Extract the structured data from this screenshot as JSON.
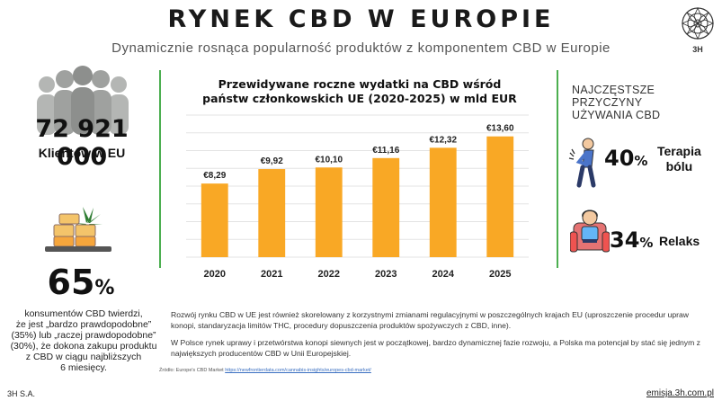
{
  "header": {
    "title": "RYNEK CBD W EUROPIE",
    "subtitle": "Dynamicznie rosnąca popularność produktów z komponentem CBD w Europie",
    "logo_text": "3H"
  },
  "left": {
    "clients_number": "72 921 000",
    "clients_label": "Klientów w EU",
    "percent_value": "65",
    "percent_sign": "%",
    "percent_desc_lines": [
      "konsumentów CBD twierdzi,",
      "że jest „bardzo prawdopodobne”",
      "(35%) lub „raczej prawdopodobne”",
      "(30%), że dokona zakupu produktu",
      "z CBD w ciągu najbliższych",
      "6 miesięcy."
    ]
  },
  "chart_title_lines": [
    "Przewidywane roczne wydatki na CBD wśród",
    "państw członkowskich UE (2020-2025) w mld EUR"
  ],
  "chart_data": {
    "type": "bar",
    "title": "Przewidywane roczne wydatki na CBD wśród państw członkowskich UE (2020-2025) w mld EUR",
    "categories": [
      "2020",
      "2021",
      "2022",
      "2023",
      "2024",
      "2025"
    ],
    "values": [
      8.29,
      9.92,
      10.1,
      11.16,
      12.32,
      13.6
    ],
    "labels": [
      "€8,29",
      "€9,92",
      "€10,10",
      "€11,16",
      "€12,32",
      "€13,60"
    ],
    "xlabel": "",
    "ylabel": "",
    "ylim": [
      0,
      16
    ],
    "grid": true,
    "color": "#f9a825"
  },
  "right": {
    "heading_lines": [
      "NAJCZĘSTSZE",
      "PRZYCZYNY",
      "UŻYWANIA CBD"
    ],
    "reasons": [
      {
        "percent": "40",
        "sign": "%",
        "label_lines": [
          "Terapia",
          "bólu"
        ]
      },
      {
        "percent": "34",
        "sign": "%",
        "label_lines": [
          "Relaks"
        ]
      }
    ]
  },
  "paragraphs": [
    "Rozwój rynku CBD w UE jest również skorelowany z korzystnymi zmianami regulacyjnymi w poszczególnych krajach EU (uproszczenie procedur upraw konopi, standaryzacja limitów THC, procedury dopuszczenia produktów spożywczych z CBD, inne).",
    "W Polsce rynek uprawy i przetwórstwa konopi siewnych jest w początkowej, bardzo dynamicznej fazie rozwoju, a Polska ma potencjał by stać się jednym z największych producentów CBD w Unii Europejskiej."
  ],
  "source": {
    "prefix": "Źródło: Europe's CBD Market",
    "link": "https://newfrontierdata.com/cannabis-insights/europes-cbd-market/"
  },
  "footer": {
    "company": "3H S.A.",
    "website": "emisja.3h.com.pl"
  },
  "colors": {
    "accent_green": "#4caf50",
    "bar": "#f9a825",
    "people": "#a7a9a7"
  }
}
